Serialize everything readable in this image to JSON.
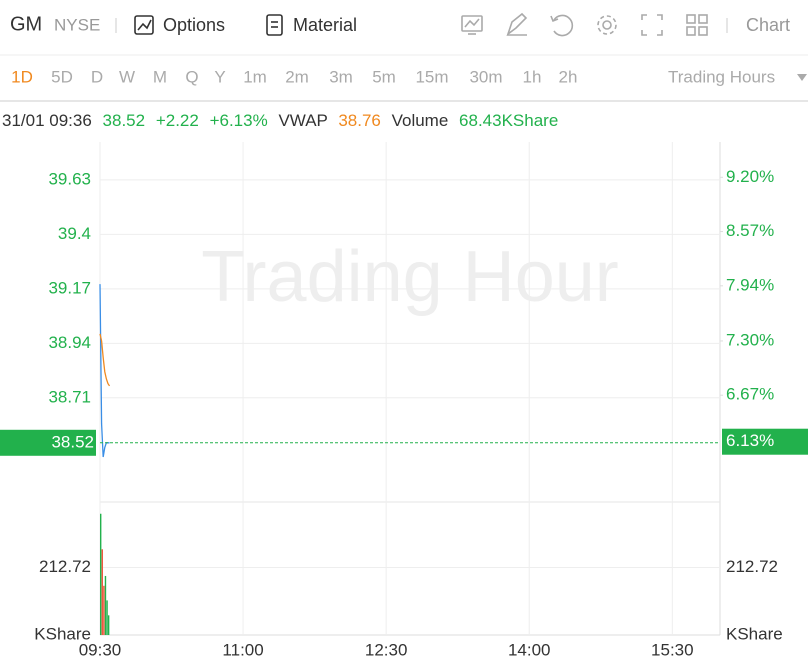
{
  "header": {
    "symbol": "GM",
    "exchange": "NYSE",
    "tabs": [
      "Options",
      "Material"
    ],
    "chart_menu": "Chart"
  },
  "periods": {
    "items": [
      "1D",
      "5D",
      "D",
      "W",
      "M",
      "Q",
      "Y",
      "1m",
      "2m",
      "3m",
      "5m",
      "15m",
      "30m",
      "1h",
      "2h"
    ],
    "active": "1D",
    "session": "Trading Hours"
  },
  "quote": {
    "time": "31/01 09:36",
    "price": "38.52",
    "change": "+2.22",
    "change_pct": "+6.13%",
    "vwap_label": "VWAP",
    "vwap": "38.76",
    "volume_label": "Volume",
    "volume": "68.43KShare"
  },
  "chart_data": [
    {
      "type": "line",
      "watermark": "Trading Hour",
      "x": [
        "09:30",
        "09:31",
        "09:32",
        "09:33",
        "09:34",
        "09:35",
        "09:36"
      ],
      "xlim": [
        "09:30",
        "16:00"
      ],
      "series": [
        {
          "color": "#3a8ee6",
          "values": [
            39.19,
            38.6,
            38.46,
            38.5,
            38.52,
            38.52,
            38.52
          ]
        },
        {
          "color": "#f0891f",
          "values": [
            38.98,
            38.95,
            38.88,
            38.82,
            38.79,
            38.77,
            38.76
          ]
        }
      ],
      "ylim": [
        38.27,
        39.79
      ],
      "yticks": [
        38.71,
        38.94,
        39.17,
        39.4,
        39.63
      ],
      "y2lim": [
        5.43,
        9.61
      ],
      "y2ticks": [
        {
          "value": 6.67,
          "label": "6.67%"
        },
        {
          "value": 7.3,
          "label": "7.30%"
        },
        {
          "value": 7.94,
          "label": "7.94%"
        },
        {
          "value": 8.57,
          "label": "8.57%"
        },
        {
          "value": 9.2,
          "label": "9.20%"
        }
      ],
      "current": 38.52,
      "current_y2": {
        "value": 6.13,
        "label": "6.13%"
      },
      "grid": true
    },
    {
      "type": "bar",
      "unit": "KShare",
      "x": [
        "09:30",
        "09:31",
        "09:32",
        "09:33",
        "09:34",
        "09:35"
      ],
      "xlim": [
        "09:30",
        "16:00"
      ],
      "xticks": [
        "09:30",
        "11:00",
        "12:30",
        "14:00",
        "15:30"
      ],
      "values": [
        382,
        270,
        155,
        186,
        109,
        62
      ],
      "colors": [
        "#22b14c",
        "#f0573f",
        "#f0573f",
        "#22b14c",
        "#22b14c",
        "#22b14c"
      ],
      "ylim": [
        0,
        419
      ],
      "yticks": [
        212.72
      ],
      "grid": true
    }
  ]
}
